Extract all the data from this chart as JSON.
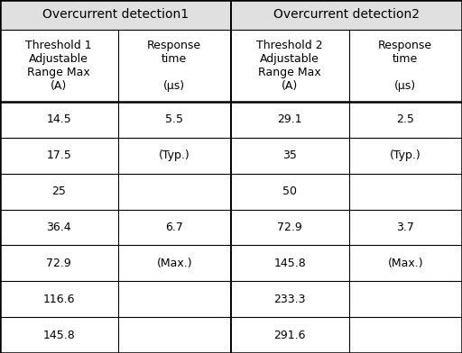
{
  "header_row1": [
    "Overcurrent detection1",
    "Overcurrent detection2"
  ],
  "header_row2": [
    "Threshold 1\nAdjustable\nRange Max\n(A)",
    "Response\ntime\n\n(μs)",
    "Threshold 2\nAdjustable\nRange Max\n(A)",
    "Response\ntime\n\n(μs)"
  ],
  "data_rows": [
    [
      "14.5",
      "5.5",
      "29.1",
      "2.5"
    ],
    [
      "17.5",
      "(Typ.)",
      "35",
      "(Typ.)"
    ],
    [
      "25",
      "",
      "50",
      ""
    ],
    [
      "36.4",
      "6.7",
      "72.9",
      "3.7"
    ],
    [
      "72.9",
      "(Max.)",
      "145.8",
      "(Max.)"
    ],
    [
      "116.6",
      "",
      "233.3",
      ""
    ],
    [
      "145.8",
      "",
      "291.6",
      ""
    ]
  ],
  "header1_bg": "#e0e0e0",
  "header2_bg": "#ffffff",
  "data_bg": "#ffffff",
  "border_color": "#000000",
  "text_color": "#000000",
  "font_size": 9.0,
  "header1_font_size": 10.0,
  "header2_font_size": 9.0,
  "fig_width": 5.12,
  "fig_height": 3.92,
  "dpi": 100
}
